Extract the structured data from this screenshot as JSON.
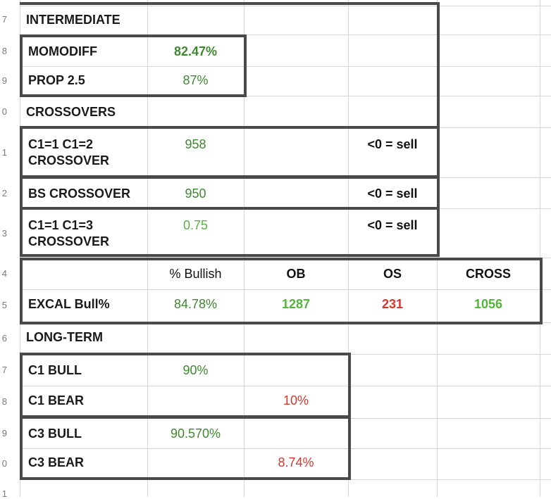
{
  "row_numbers": [
    "7",
    "8",
    "9",
    "0",
    "1",
    "2",
    "3",
    "4",
    "5",
    "6",
    "7",
    "8",
    "9",
    "0",
    "1"
  ],
  "sections": {
    "intermediate": "INTERMEDIATE",
    "crossovers": "CROSSOVERS",
    "long_term": "LONG-TERM"
  },
  "intermediate": {
    "momodiff_label": "MOMODIFF",
    "momodiff_value": "82.47%",
    "prop_label": "PROP 2.5",
    "prop_value": "87%"
  },
  "crossovers": {
    "c1c2_label_line1": "C1=1 C1=2",
    "c1c2_label_line2": "CROSSOVER",
    "c1c2_value": "958",
    "c1c2_note": "<0 = sell",
    "bs_label": "BS CROSSOVER",
    "bs_value": "950",
    "bs_note": "<0 = sell",
    "c1c3_label_line1": "C1=1 C1=3",
    "c1c3_label_line2": "CROSSOVER",
    "c1c3_value": "0.75",
    "c1c3_note": "<0 = sell"
  },
  "excal": {
    "headers": {
      "bullish": "% Bullish",
      "ob": "OB",
      "os": "OS",
      "cross": "CROSS"
    },
    "label": "EXCAL Bull%",
    "bullish": "84.78%",
    "ob": "1287",
    "os": "231",
    "cross": "1056"
  },
  "long_term": {
    "c1_bull_label": "C1 BULL",
    "c1_bull_value": "90%",
    "c1_bear_label": "C1 BEAR",
    "c1_bear_value": "10%",
    "c3_bull_label": "C3 BULL",
    "c3_bull_value": "90.570%",
    "c3_bear_label": "C3 BEAR",
    "c3_bear_value": "8.74%"
  },
  "colors": {
    "dark_green": "#3d8a2e",
    "light_green": "#52b53a",
    "red": "#d9352c",
    "border": "#4a4a4a",
    "gridline": "#d6d6d6"
  }
}
